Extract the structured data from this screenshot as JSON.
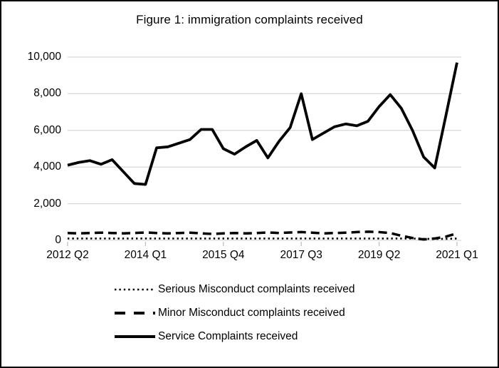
{
  "title": "Figure 1: immigration complaints received",
  "colors": {
    "background": "#ffffff",
    "border": "#000000",
    "grid": "#d9d9d9",
    "tick": "#bfbfbf",
    "line": "#000000"
  },
  "chart_data": {
    "type": "line",
    "title": "Figure 1: immigration complaints received",
    "xlabel": "",
    "ylabel": "",
    "ylim": [
      0,
      10000
    ],
    "grid": "horizontal",
    "legend_position": "bottom-left",
    "y_ticks": [
      0,
      2000,
      4000,
      6000,
      8000,
      10000
    ],
    "y_tick_labels": [
      "0",
      "2,000",
      "4,000",
      "6,000",
      "8,000",
      "10,000"
    ],
    "x_tick_every": 7,
    "x_tick_labels": [
      "2012 Q2",
      "2014 Q1",
      "2015 Q4",
      "2017 Q3",
      "2019 Q2",
      "2021 Q1"
    ],
    "x": [
      "2012 Q2",
      "2012 Q3",
      "2012 Q4",
      "2013 Q1",
      "2013 Q2",
      "2013 Q3",
      "2013 Q4",
      "2014 Q1",
      "2014 Q2",
      "2014 Q3",
      "2014 Q4",
      "2015 Q1",
      "2015 Q2",
      "2015 Q3",
      "2015 Q4",
      "2016 Q1",
      "2016 Q2",
      "2016 Q3",
      "2016 Q4",
      "2017 Q1",
      "2017 Q2",
      "2017 Q3",
      "2017 Q4",
      "2018 Q1",
      "2018 Q2",
      "2018 Q3",
      "2018 Q4",
      "2019 Q1",
      "2019 Q2",
      "2019 Q3",
      "2019 Q4",
      "2020 Q1",
      "2020 Q2",
      "2020 Q3",
      "2020 Q4",
      "2021 Q1"
    ],
    "series": [
      {
        "name": "Serious Misconduct complaints received",
        "style": "dotted",
        "color": "#000000",
        "values": [
          100,
          100,
          100,
          100,
          100,
          100,
          100,
          100,
          100,
          100,
          100,
          100,
          100,
          100,
          100,
          100,
          100,
          100,
          100,
          100,
          100,
          100,
          100,
          100,
          100,
          100,
          100,
          100,
          100,
          100,
          100,
          100,
          80,
          80,
          80,
          100
        ]
      },
      {
        "name": "Minor Misconduct complaints received",
        "style": "dashed",
        "color": "#000000",
        "values": [
          400,
          380,
          400,
          420,
          400,
          380,
          400,
          430,
          400,
          380,
          400,
          420,
          380,
          350,
          380,
          400,
          380,
          400,
          430,
          400,
          430,
          450,
          420,
          380,
          400,
          420,
          450,
          470,
          450,
          400,
          250,
          130,
          50,
          100,
          200,
          380
        ]
      },
      {
        "name": "Service Complaints received",
        "style": "solid",
        "color": "#000000",
        "values": [
          4100,
          4250,
          4350,
          4150,
          4400,
          3750,
          3100,
          3050,
          5050,
          5100,
          5300,
          5500,
          6050,
          6050,
          5000,
          4700,
          5100,
          5450,
          4500,
          5400,
          6150,
          8000,
          5500,
          5850,
          6200,
          6350,
          6250,
          6500,
          7300,
          7950,
          7200,
          6000,
          4550,
          3950,
          6800,
          9700
        ]
      }
    ]
  }
}
